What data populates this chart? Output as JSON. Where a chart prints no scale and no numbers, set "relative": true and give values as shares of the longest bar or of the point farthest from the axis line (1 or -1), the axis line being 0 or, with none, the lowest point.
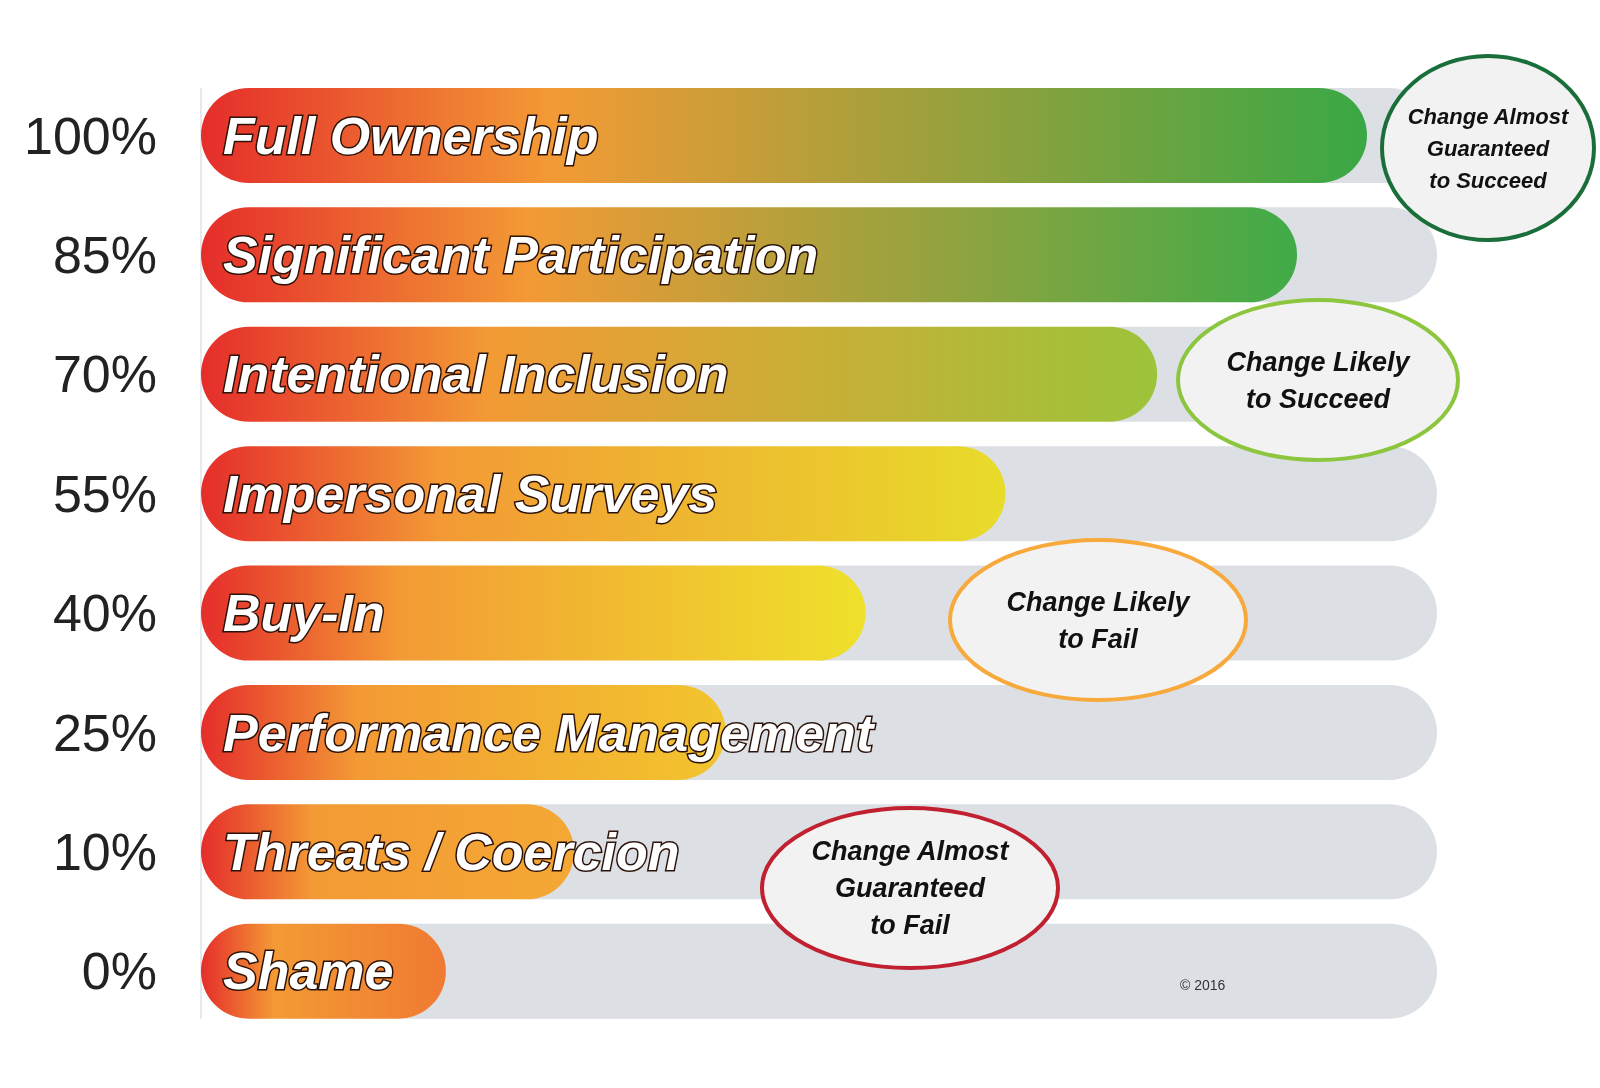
{
  "chart_data": {
    "type": "bar",
    "orientation": "horizontal",
    "relative": true,
    "categories": [
      "Full Ownership",
      "Significant Participation",
      "Intentional Inclusion",
      "Impersonal Surveys",
      "Buy-In",
      "Performance Management",
      "Threats / Coercion",
      "Shame"
    ],
    "values": [
      1,
      0.94,
      0.82,
      0.69,
      0.57,
      0.45,
      0.32,
      0.21
    ],
    "colors": [
      "#39a845",
      "#3fab48",
      "#9cc43a",
      "#e8dc2a",
      "#efe12b",
      "#f2c52e",
      "#f4a834",
      "#f07a32"
    ],
    "annotations": [
      "100%",
      "85%",
      "70%",
      "55%",
      "40%",
      "25%",
      "10%",
      "0%",
      "Change Almost Guaranteed to Succeed",
      "Change Likely to Succeed",
      "Change Likely to Fail",
      "Change Almost Guaranteed to Fail",
      "© 2016"
    ]
  }
}
